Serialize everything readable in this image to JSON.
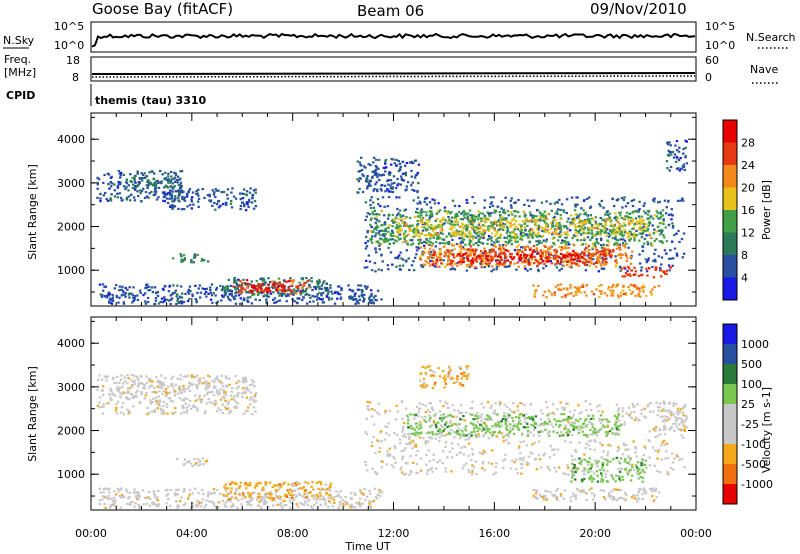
{
  "header": {
    "radar": "Goose Bay (fitACF)",
    "beam": "Beam 06",
    "date": "09/Nov/2010"
  },
  "noise_panel": {
    "left_label": "N.Sky",
    "left_ticks": [
      "10^5",
      "10^0"
    ],
    "right_ticks": [
      "10^5",
      "10^0"
    ],
    "right_label": "N.Search"
  },
  "freq_panel": {
    "left_label_line1": "Freq.",
    "left_label_line2": "[MHz]",
    "left_ticks": [
      "18",
      "8"
    ],
    "right_ticks": [
      "60",
      "0"
    ],
    "right_label": "Nave"
  },
  "cpid": {
    "label": "CPID",
    "value": "themis (tau) 3310"
  },
  "colors": {
    "power_scale": [
      "#1a1ae6",
      "#2850a0",
      "#2a7a5a",
      "#3fa045",
      "#e8c21a",
      "#f58a1a",
      "#e83a12",
      "#e60000"
    ],
    "velocity_scale": [
      "#e60000",
      "#f0700f",
      "#f5a81a",
      "#c8c8c8",
      "#c8c8c8",
      "#78c850",
      "#2a7a3a",
      "#2850a0",
      "#1a1ae6"
    ]
  },
  "chart_data": [
    {
      "type": "heatmap",
      "name": "power",
      "ylabel": "Slant Range [km]",
      "yticks": [
        "1000",
        "2000",
        "3000",
        "4000"
      ],
      "xlim": [
        0,
        24
      ],
      "ylim": [
        180,
        4600
      ],
      "colorbar_label": "Power [dB]",
      "colorbar_ticks": [
        "4",
        "8",
        "12",
        "16",
        "20",
        "24",
        "28"
      ],
      "regions": [
        {
          "x0": 0.3,
          "x1": 11.5,
          "y0": 250,
          "y1": 700,
          "level": 1
        },
        {
          "x0": 5.2,
          "x1": 9.5,
          "y0": 450,
          "y1": 850,
          "level": 2
        },
        {
          "x0": 5.6,
          "x1": 8.6,
          "y0": 480,
          "y1": 800,
          "level": 6
        },
        {
          "x0": 6.3,
          "x1": 7.7,
          "y0": 520,
          "y1": 720,
          "level": 7
        },
        {
          "x0": 0.2,
          "x1": 3.6,
          "y0": 2600,
          "y1": 3300,
          "level": 1
        },
        {
          "x0": 1.5,
          "x1": 3.5,
          "y0": 2900,
          "y1": 3200,
          "level": 2
        },
        {
          "x0": 3.0,
          "x1": 6.5,
          "y0": 2400,
          "y1": 2900,
          "level": 1
        },
        {
          "x0": 3.2,
          "x1": 4.6,
          "y0": 1200,
          "y1": 1400,
          "level": 2
        },
        {
          "x0": 10.8,
          "x1": 23.5,
          "y0": 1000,
          "y1": 2700,
          "level": 1
        },
        {
          "x0": 11.0,
          "x1": 22.8,
          "y0": 1600,
          "y1": 2400,
          "level": 3
        },
        {
          "x0": 12.0,
          "x1": 22.0,
          "y0": 1800,
          "y1": 2200,
          "level": 4
        },
        {
          "x0": 13.0,
          "x1": 21.5,
          "y0": 1100,
          "y1": 1600,
          "level": 5
        },
        {
          "x0": 13.5,
          "x1": 20.8,
          "y0": 1150,
          "y1": 1500,
          "level": 6
        },
        {
          "x0": 14.5,
          "x1": 19.5,
          "y0": 1200,
          "y1": 1400,
          "level": 7
        },
        {
          "x0": 17.5,
          "x1": 22.5,
          "y0": 400,
          "y1": 700,
          "level": 5
        },
        {
          "x0": 21.0,
          "x1": 23.0,
          "y0": 850,
          "y1": 1100,
          "level": 6
        },
        {
          "x0": 10.5,
          "x1": 13.0,
          "y0": 2800,
          "y1": 3600,
          "level": 1
        },
        {
          "x0": 22.8,
          "x1": 23.6,
          "y0": 3300,
          "y1": 4000,
          "level": 1
        }
      ]
    },
    {
      "type": "heatmap",
      "name": "velocity",
      "ylabel": "Slant Range [km]",
      "yticks": [
        "1000",
        "2000",
        "3000",
        "4000"
      ],
      "xlim": [
        0,
        24
      ],
      "ylim": [
        180,
        4600
      ],
      "xlabel": "Time UT",
      "xticks": [
        "00:00",
        "04:00",
        "08:00",
        "12:00",
        "16:00",
        "20:00",
        "00:00"
      ],
      "colorbar_label": "Velocity [m s-1]",
      "colorbar_ticks": [
        "-1000",
        "-500",
        "-100",
        "-25",
        "25",
        "100",
        "500",
        "1000"
      ],
      "regions": [
        {
          "x0": 0.3,
          "x1": 11.5,
          "y0": 250,
          "y1": 700,
          "level": 3
        },
        {
          "x0": 5.2,
          "x1": 9.5,
          "y0": 450,
          "y1": 850,
          "level": 2
        },
        {
          "x0": 0.2,
          "x1": 6.5,
          "y0": 2400,
          "y1": 3300,
          "level": 3
        },
        {
          "x0": 3.2,
          "x1": 4.6,
          "y0": 1200,
          "y1": 1400,
          "level": 3
        },
        {
          "x0": 10.8,
          "x1": 23.5,
          "y0": 1000,
          "y1": 2700,
          "level": 3
        },
        {
          "x0": 12.5,
          "x1": 21.0,
          "y0": 1900,
          "y1": 2400,
          "level": 5
        },
        {
          "x0": 19.0,
          "x1": 22.0,
          "y0": 850,
          "y1": 1400,
          "level": 5
        },
        {
          "x0": 17.5,
          "x1": 22.5,
          "y0": 400,
          "y1": 700,
          "level": 3
        },
        {
          "x0": 22.5,
          "x1": 23.6,
          "y0": 2000,
          "y1": 2700,
          "level": 3
        },
        {
          "x0": 13.0,
          "x1": 15.0,
          "y0": 3000,
          "y1": 3500,
          "level": 2
        }
      ]
    }
  ]
}
